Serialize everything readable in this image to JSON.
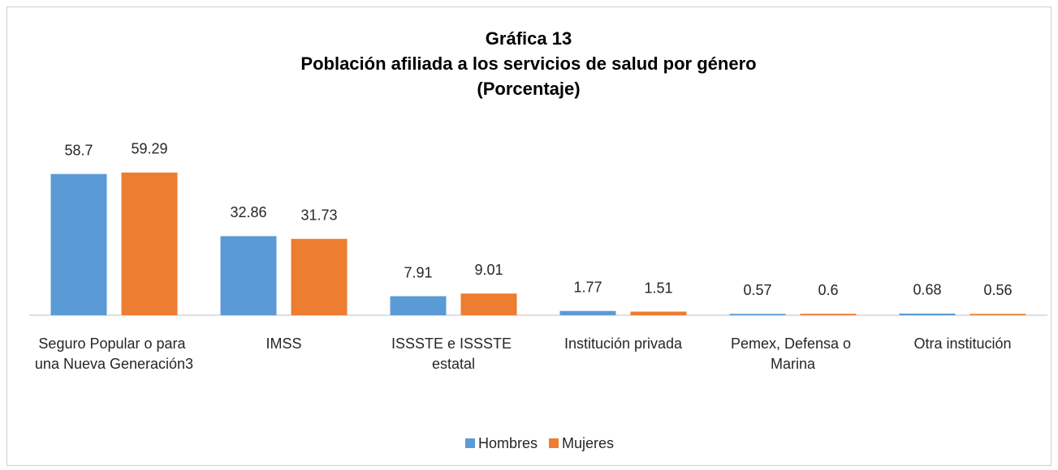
{
  "chart_data": {
    "type": "bar",
    "title": [
      "Gráfica 13",
      "Población afiliada a los servicios de salud por género",
      "(Porcentaje)"
    ],
    "categories": [
      "Seguro Popular o para una Nueva Generación3",
      "IMSS",
      "ISSSTE e ISSSTE estatal",
      "Institución privada",
      "Pemex, Defensa o Marina",
      "Otra institución"
    ],
    "series": [
      {
        "name": "Hombres",
        "color": "#5b9bd5",
        "values": [
          58.7,
          32.86,
          7.91,
          1.77,
          0.57,
          0.68
        ]
      },
      {
        "name": "Mujeres",
        "color": "#ed7d31",
        "values": [
          59.29,
          31.73,
          9.01,
          1.51,
          0.6,
          0.56
        ]
      }
    ],
    "ylim": [
      0,
      65
    ],
    "legend": "bottom"
  }
}
